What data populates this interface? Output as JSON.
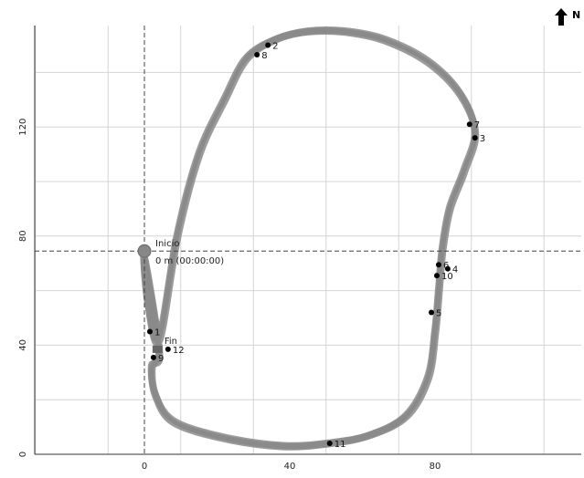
{
  "chart_data": {
    "type": "scatter",
    "title": "",
    "xlabel": "",
    "ylabel": "",
    "xlim": [
      -30,
      120
    ],
    "ylim": [
      0,
      157
    ],
    "x_ticks": [
      0,
      40,
      80
    ],
    "y_ticks": [
      0,
      40,
      80,
      120
    ],
    "grid": true,
    "colors": {
      "track": "#8a8a8a",
      "point": "#000000",
      "marker": "#888888"
    },
    "crosshair": {
      "x": 0,
      "y": 74.5
    },
    "north_label": "N",
    "north_icon": "arrow-up-icon",
    "start": {
      "label": "Inicio",
      "detail": "0 m (00:00:00)",
      "x": 0,
      "y": 74.5
    },
    "finish": {
      "label": "Fin",
      "x": 4.5,
      "y": 38.5
    },
    "points": [
      {
        "label": "1",
        "x": 1.5,
        "y": 45
      },
      {
        "label": "2",
        "x": 34,
        "y": 150
      },
      {
        "label": "3",
        "x": 91,
        "y": 116
      },
      {
        "label": "4",
        "x": 83.5,
        "y": 68
      },
      {
        "label": "5",
        "x": 79,
        "y": 52
      },
      {
        "label": "6",
        "x": 81,
        "y": 69.5
      },
      {
        "label": "7",
        "x": 89.5,
        "y": 121
      },
      {
        "label": "8",
        "x": 31,
        "y": 146.5
      },
      {
        "label": "9",
        "x": 2.5,
        "y": 35.5
      },
      {
        "label": "10",
        "x": 80.5,
        "y": 65.5
      },
      {
        "label": "11",
        "x": 51,
        "y": 4
      },
      {
        "label": "12",
        "x": 6.5,
        "y": 38.5
      }
    ],
    "track": [
      [
        0,
        72
      ],
      [
        1,
        55
      ],
      [
        4,
        42
      ],
      [
        9,
        80
      ],
      [
        15,
        110
      ],
      [
        22,
        130
      ],
      [
        28,
        145
      ],
      [
        36,
        152
      ],
      [
        45,
        155
      ],
      [
        55,
        155
      ],
      [
        66,
        152
      ],
      [
        78,
        144
      ],
      [
        87,
        132
      ],
      [
        91,
        118
      ],
      [
        88,
        104
      ],
      [
        84,
        90
      ],
      [
        82,
        75
      ],
      [
        81,
        60
      ],
      [
        80,
        45
      ],
      [
        78,
        28
      ],
      [
        72,
        14
      ],
      [
        62,
        7
      ],
      [
        51,
        4
      ],
      [
        38,
        3
      ],
      [
        22,
        6
      ],
      [
        8,
        12
      ],
      [
        3,
        22
      ],
      [
        2,
        32
      ],
      [
        4,
        38
      ]
    ]
  }
}
